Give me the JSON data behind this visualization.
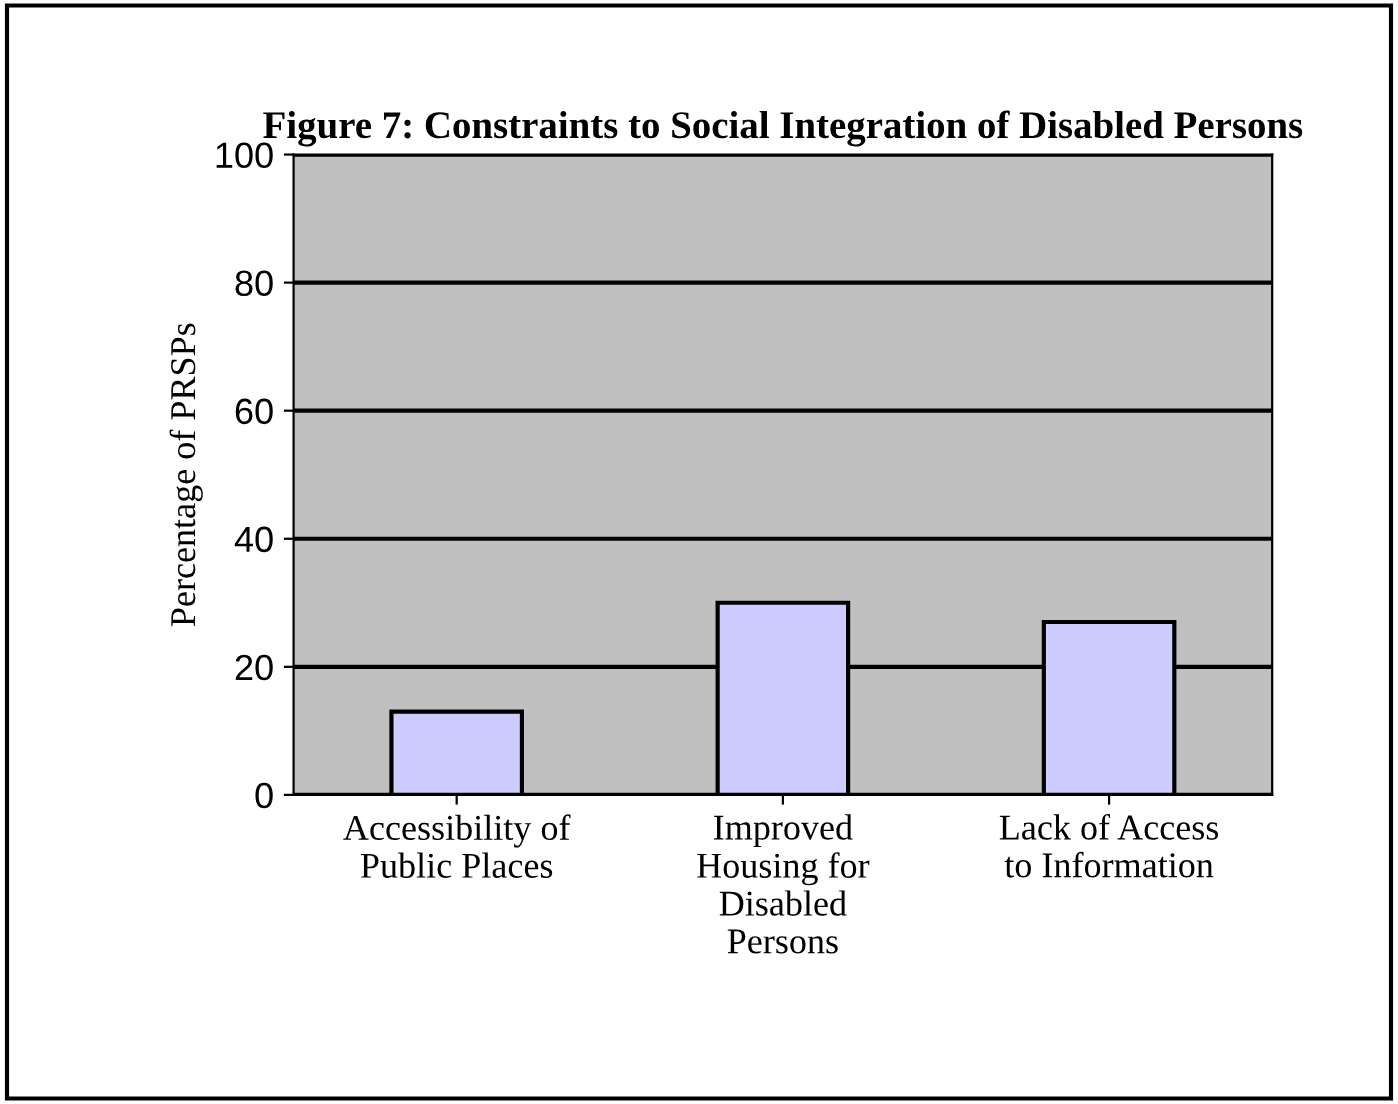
{
  "chart_data": {
    "type": "bar",
    "title": "Figure 7: Constraints to Social Integration of Disabled Persons",
    "ylabel": "Percentage of PRSPs",
    "categories": [
      "Accessibility of\nPublic Places",
      "Improved\nHousing for\nDisabled\nPersons",
      "Lack of Access\nto Information"
    ],
    "series": [
      {
        "color": "#ccccff",
        "values": [
          13,
          30,
          27
        ]
      }
    ],
    "ylim": [
      0,
      100
    ],
    "yticks": [
      0,
      20,
      40,
      60,
      80,
      100
    ],
    "grid": "y",
    "legend": false
  }
}
